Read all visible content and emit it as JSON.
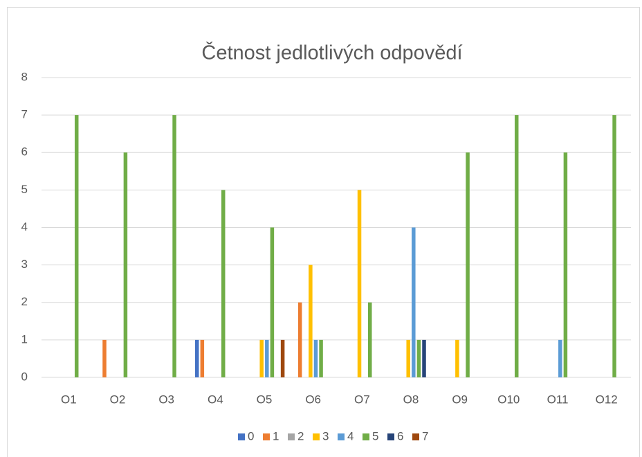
{
  "chart_data": {
    "type": "bar",
    "title": "Četnost jedlotlivých odpovědí",
    "categories": [
      "O1",
      "O2",
      "O3",
      "O4",
      "O5",
      "O6",
      "O7",
      "O8",
      "O9",
      "O10",
      "O11",
      "O12"
    ],
    "series": [
      {
        "name": "0",
        "color": "#4472c4",
        "values": [
          0,
          0,
          0,
          1,
          0,
          0,
          0,
          0,
          0,
          0,
          0,
          0
        ]
      },
      {
        "name": "1",
        "color": "#ed7d31",
        "values": [
          0,
          1,
          0,
          1,
          0,
          2,
          0,
          0,
          0,
          0,
          0,
          0
        ]
      },
      {
        "name": "2",
        "color": "#a5a5a5",
        "values": [
          0,
          0,
          0,
          0,
          0,
          0,
          0,
          0,
          0,
          0,
          0,
          0
        ]
      },
      {
        "name": "3",
        "color": "#ffc000",
        "values": [
          0,
          0,
          0,
          0,
          1,
          3,
          5,
          1,
          1,
          0,
          0,
          0
        ]
      },
      {
        "name": "4",
        "color": "#5b9bd5",
        "values": [
          0,
          0,
          0,
          0,
          1,
          1,
          0,
          4,
          0,
          0,
          1,
          0
        ]
      },
      {
        "name": "5",
        "color": "#70ad47",
        "values": [
          7,
          6,
          7,
          5,
          4,
          1,
          2,
          1,
          6,
          7,
          6,
          7
        ]
      },
      {
        "name": "6",
        "color": "#264478",
        "values": [
          0,
          0,
          0,
          0,
          0,
          0,
          0,
          1,
          0,
          0,
          0,
          0
        ]
      },
      {
        "name": "7",
        "color": "#9e480e",
        "values": [
          0,
          0,
          0,
          0,
          1,
          0,
          0,
          0,
          0,
          0,
          0,
          0
        ]
      }
    ],
    "ylim": [
      0,
      8
    ],
    "yticks": [
      0,
      1,
      2,
      3,
      4,
      5,
      6,
      7,
      8
    ],
    "grid": true,
    "legend": "bottom"
  }
}
